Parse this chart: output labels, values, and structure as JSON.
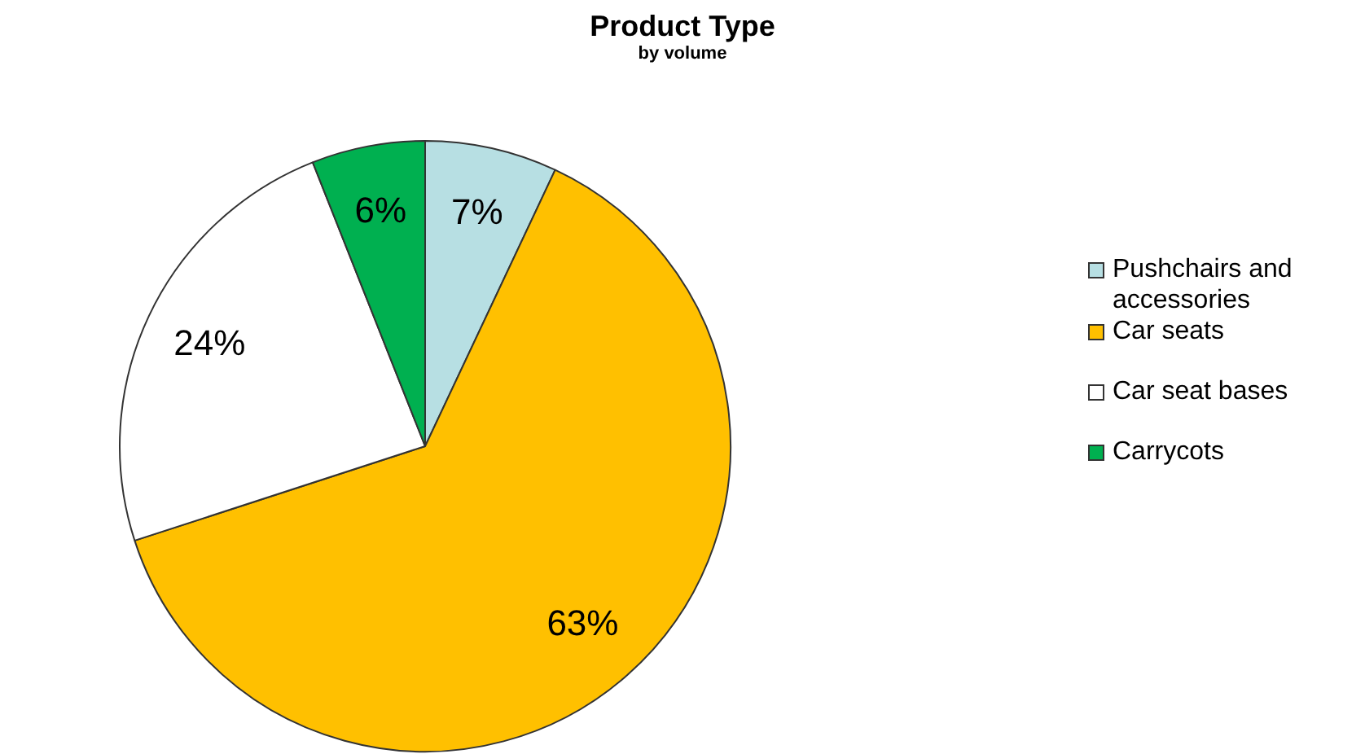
{
  "chart_data": {
    "type": "pie",
    "title": "Product Type",
    "subtitle": "by volume",
    "categories": [
      "Pushchairs and accessories",
      "Car seats",
      "Car seat bases",
      "Carrycots"
    ],
    "values": [
      7,
      63,
      24,
      6
    ],
    "colors": [
      "#b7dfe3",
      "#ffc000",
      "#ffffff",
      "#00b050"
    ],
    "value_labels": [
      "7%",
      "63%",
      "24%",
      "6%"
    ],
    "legend": "right"
  }
}
